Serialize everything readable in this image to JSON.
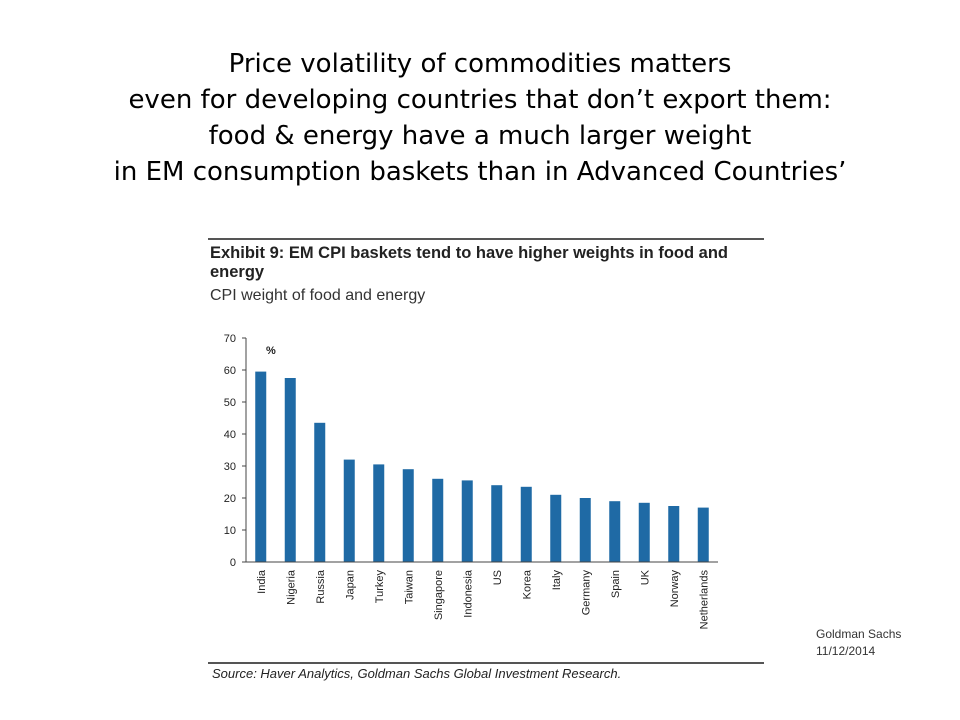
{
  "slide": {
    "title_lines": [
      "Price volatility of commodities matters",
      "even for developing countries that don’t export them:",
      "food & energy have a much larger weight",
      "in EM consumption baskets than in Advanced Countries’"
    ],
    "credit_line1": "Goldman Sachs",
    "credit_line2": "11/12/2014"
  },
  "chart_data": {
    "type": "bar",
    "title": "Exhibit 9: EM CPI baskets tend to have higher weights in food and energy",
    "subtitle": "CPI weight of food and energy",
    "unit_label": "%",
    "source": "Source: Haver Analytics, Goldman Sachs Global Investment Research.",
    "categories": [
      "India",
      "Nigeria",
      "Russia",
      "Japan",
      "Turkey",
      "Taiwan",
      "Singapore",
      "Indonesia",
      "US",
      "Korea",
      "Italy",
      "Germany",
      "Spain",
      "UK",
      "Norway",
      "Netherlands"
    ],
    "values": [
      59.5,
      57.5,
      43.5,
      32,
      30.5,
      29,
      26,
      25.5,
      24,
      23.5,
      21,
      20,
      19,
      18.5,
      17.5,
      17
    ],
    "ylim": [
      0,
      70
    ],
    "yticks": [
      0,
      10,
      20,
      30,
      40,
      50,
      60,
      70
    ],
    "bar_color": "#1f6aa5",
    "grid": false
  }
}
